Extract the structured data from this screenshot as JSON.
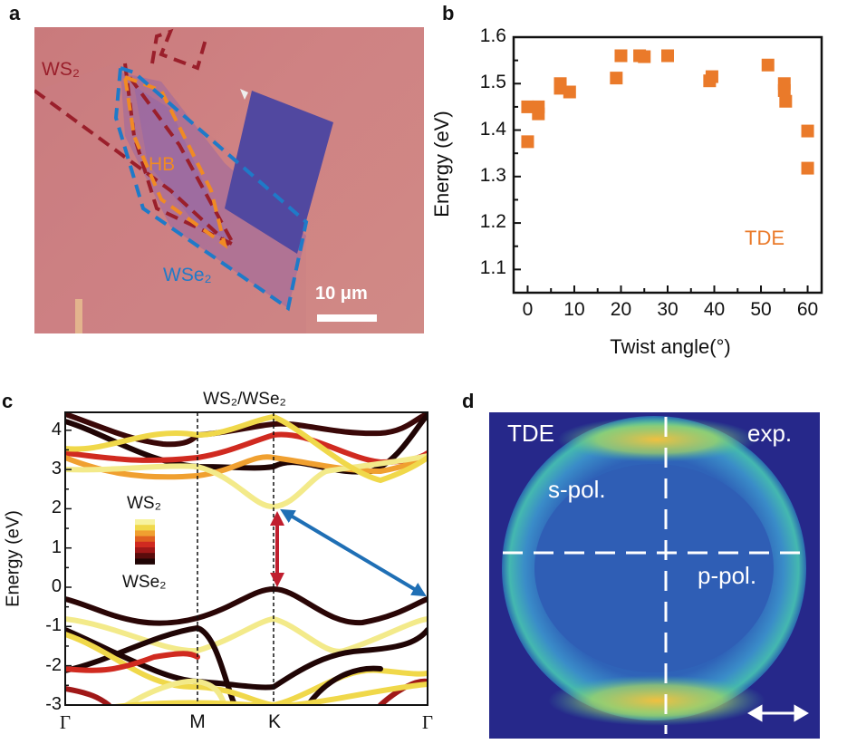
{
  "panels": {
    "a": {
      "label": "a",
      "ws2_label": "WS₂",
      "hb_label": "HB",
      "wse2_label": "WSe₂",
      "scale_bar": "10 μm",
      "colors": {
        "ws2": "#9a1f2b",
        "hb": "#f08a24",
        "wse2": "#1f7ac8"
      }
    },
    "b": {
      "label": "b"
    },
    "c": {
      "label": "c",
      "title": "WS₂/WSe₂",
      "ylabel": "Energy (eV)",
      "yticks": [
        "4",
        "3",
        "2",
        "1",
        "0",
        "-1",
        "-2",
        "-3"
      ],
      "kpoints": [
        "Γ",
        "M",
        "K",
        "Γ"
      ],
      "legend_top": "WS₂",
      "legend_bottom": "WSe₂",
      "colorscale": [
        "#f7f3a0",
        "#f0d84a",
        "#f0a030",
        "#e06020",
        "#d02a20",
        "#a01818",
        "#5a0c0c",
        "#200505"
      ],
      "arrows": {
        "direct": "#c01e2e",
        "indirect": "#1f6fb5"
      }
    },
    "d": {
      "label": "d",
      "tde_label": "TDE",
      "exp_label": "exp.",
      "s_pol": "s-pol.",
      "p_pol": "p-pol."
    }
  },
  "chart_data": {
    "type": "scatter",
    "title": "",
    "xlabel": "Twist angle(°)",
    "ylabel": "Energy (eV)",
    "xlim": [
      -3,
      63
    ],
    "ylim": [
      1.05,
      1.6
    ],
    "xticks": [
      0,
      10,
      20,
      30,
      40,
      50,
      60
    ],
    "yticks": [
      1.1,
      1.2,
      1.3,
      1.4,
      1.5,
      1.6
    ],
    "grid": false,
    "annotation": "TDE",
    "color": "#ea7a2a",
    "series": [
      {
        "name": "TDE",
        "points": [
          [
            0,
            1.45
          ],
          [
            0,
            1.375
          ],
          [
            2.3,
            1.45
          ],
          [
            2.3,
            1.435
          ],
          [
            7,
            1.5
          ],
          [
            7,
            1.49
          ],
          [
            9,
            1.482
          ],
          [
            19,
            1.512
          ],
          [
            20,
            1.56
          ],
          [
            24,
            1.56
          ],
          [
            25,
            1.558
          ],
          [
            30,
            1.56
          ],
          [
            39,
            1.506
          ],
          [
            39.5,
            1.515
          ],
          [
            51.5,
            1.54
          ],
          [
            55,
            1.5
          ],
          [
            55,
            1.485
          ],
          [
            55.3,
            1.462
          ],
          [
            60,
            1.398
          ],
          [
            60,
            1.318
          ]
        ]
      }
    ]
  }
}
